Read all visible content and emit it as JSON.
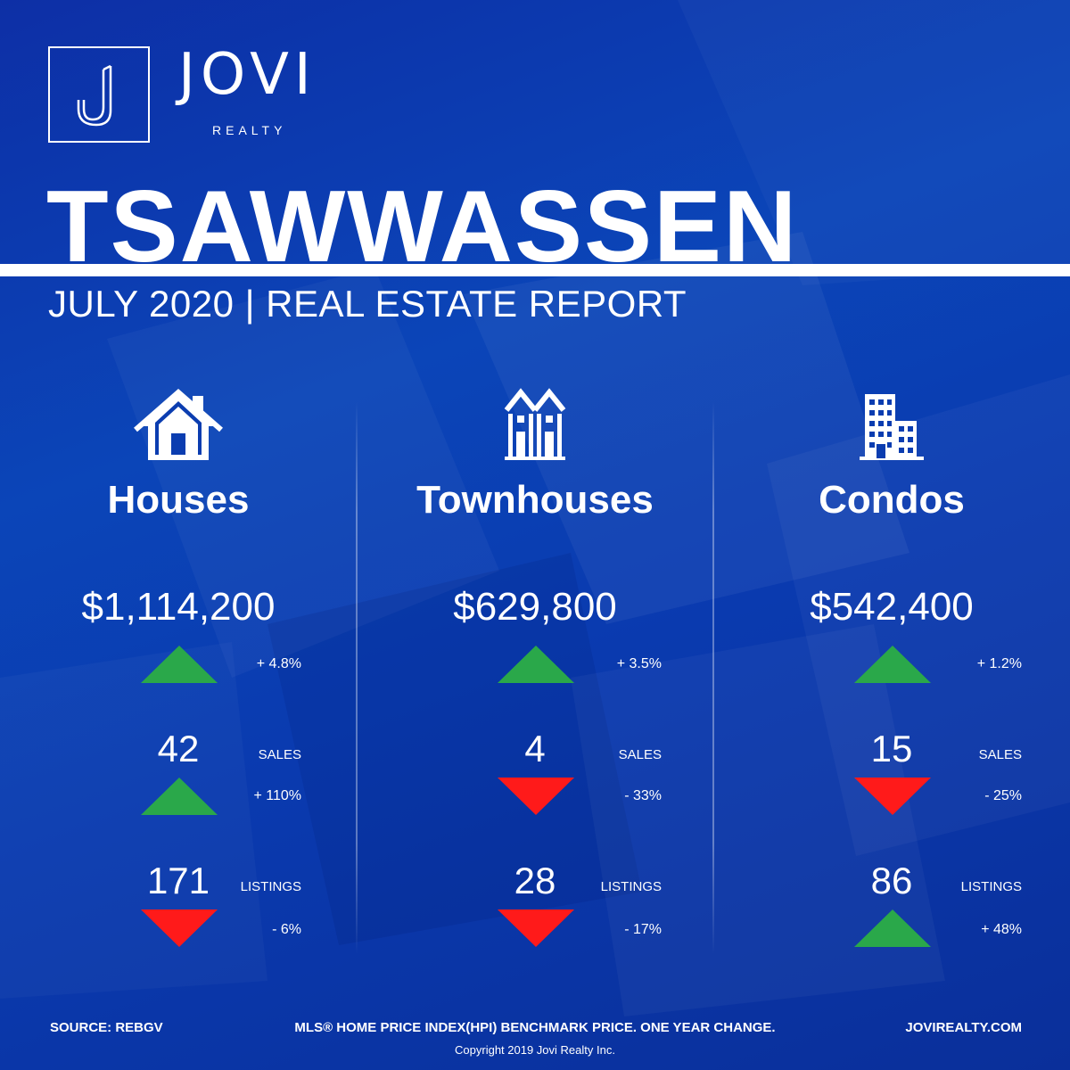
{
  "brand": {
    "name": "JOVI",
    "sub": "REALTY"
  },
  "title": "TSAWWASSEN",
  "subtitle": "JULY 2020 | REAL ESTATE REPORT",
  "colors": {
    "background": "#0a3aa8",
    "up": "#2aa84a",
    "down": "#ff1a1a",
    "text": "#ffffff"
  },
  "columns": [
    {
      "icon": "house-icon",
      "label": "Houses",
      "price": "$1,114,200",
      "price_change": {
        "direction": "up",
        "text": "+ 4.8%"
      },
      "sales": {
        "value": "42",
        "label": "SALES",
        "direction": "up",
        "change": "+ 110%"
      },
      "listings": {
        "value": "171",
        "label": "LISTINGS",
        "direction": "down",
        "change": "- 6%"
      }
    },
    {
      "icon": "townhouse-icon",
      "label": "Townhouses",
      "price": "$629,800",
      "price_change": {
        "direction": "up",
        "text": "+ 3.5%"
      },
      "sales": {
        "value": "4",
        "label": "SALES",
        "direction": "down",
        "change": "- 33%"
      },
      "listings": {
        "value": "28",
        "label": "LISTINGS",
        "direction": "down",
        "change": "- 17%"
      }
    },
    {
      "icon": "condo-building-icon",
      "label": "Condos",
      "price": "$542,400",
      "price_change": {
        "direction": "up",
        "text": "+ 1.2%"
      },
      "sales": {
        "value": "15",
        "label": "SALES",
        "direction": "down",
        "change": "- 25%"
      },
      "listings": {
        "value": "86",
        "label": "LISTINGS",
        "direction": "up",
        "change": "+ 48%"
      }
    }
  ],
  "footer": {
    "source": "SOURCE:  REBGV",
    "note": "MLS® HOME PRICE INDEX(HPI) BENCHMARK PRICE. ONE YEAR CHANGE.",
    "website": "JOVIREALTY.COM",
    "copyright": "Copyright 2019 Jovi Realty Inc."
  }
}
